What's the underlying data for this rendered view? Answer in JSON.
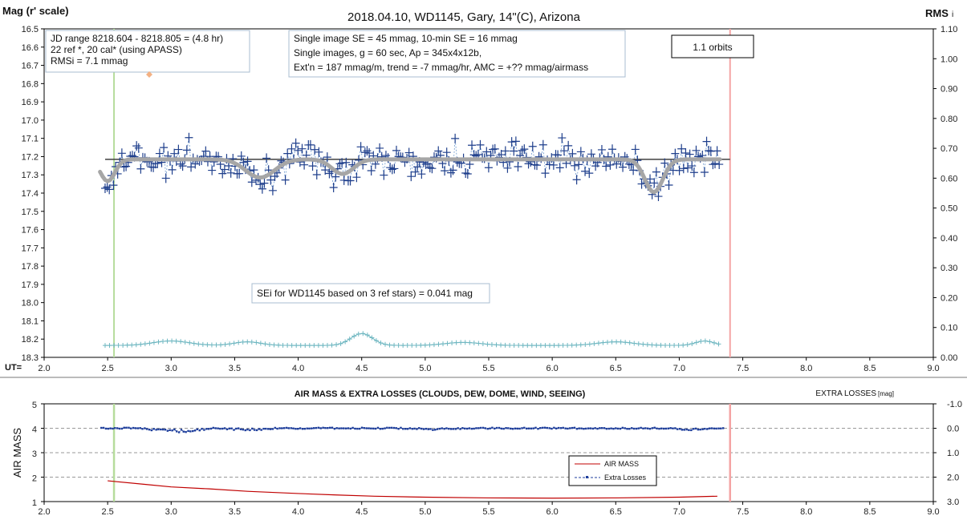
{
  "chart_data": [
    {
      "type": "scatter",
      "title": "2018.04.10,  WD1145, Gary, 14\"(C), Arizona",
      "ylabel_left": "Mag (r' scale)",
      "ylabel_right": "RMS",
      "ylabel_right_suffix": "i",
      "xlabel": "UT=",
      "xlim": [
        2.0,
        9.0
      ],
      "x_ticks": [
        "2.0",
        "2.5",
        "3.0",
        "3.5",
        "4.0",
        "4.5",
        "5.0",
        "5.5",
        "6.0",
        "6.5",
        "7.0",
        "7.5",
        "8.0",
        "8.5",
        "9.0"
      ],
      "ylim_left": [
        18.3,
        16.5
      ],
      "y_ticks_left": [
        "16.5",
        "16.6",
        "16.7",
        "16.8",
        "16.9",
        "17.0",
        "17.1",
        "17.2",
        "17.3",
        "17.4",
        "17.5",
        "17.6",
        "17.7",
        "17.8",
        "17.9",
        "18.0",
        "18.1",
        "18.2",
        "18.3"
      ],
      "ylim_right": [
        0.0,
        1.1
      ],
      "y_ticks_right": [
        "0.00",
        "0.10",
        "0.20",
        "0.30",
        "0.40",
        "0.50",
        "0.60",
        "0.70",
        "0.80",
        "0.90",
        "1.00",
        "1.10"
      ],
      "vlines": [
        {
          "x": 2.55,
          "color": "#b6dc9c"
        },
        {
          "x": 7.4,
          "color": "#f4a4a4"
        }
      ],
      "series": [
        {
          "kind": "points",
          "color": "#1f3f8c"
        },
        {
          "kind": "fit",
          "color": "#a6a6a6"
        },
        {
          "kind": "reference",
          "value": 17.215,
          "color": "#404040"
        },
        {
          "kind": "rms",
          "color": "#6fb7c1"
        }
      ],
      "x_range": [
        2.48,
        7.32
      ],
      "baseline_mag": 17.215,
      "fit_dips": [
        {
          "ut": 2.5,
          "depth": 0.12,
          "width": 0.08
        },
        {
          "ut": 3.7,
          "depth": 0.1,
          "width": 0.16
        },
        {
          "ut": 4.35,
          "depth": 0.08,
          "width": 0.12
        },
        {
          "ut": 6.8,
          "depth": 0.18,
          "width": 0.1
        }
      ],
      "rms_bumps": [
        {
          "ut": 3.0,
          "height": 0.015,
          "width": 0.2
        },
        {
          "ut": 3.6,
          "height": 0.012,
          "width": 0.15
        },
        {
          "ut": 4.5,
          "height": 0.04,
          "width": 0.12
        },
        {
          "ut": 5.3,
          "height": 0.01,
          "width": 0.2
        },
        {
          "ut": 6.5,
          "height": 0.012,
          "width": 0.2
        },
        {
          "ut": 7.2,
          "height": 0.015,
          "width": 0.1
        }
      ],
      "rms_base": 0.04,
      "annotations": {
        "jd_box": [
          "JD range  8218.604 - 8218.805  = (4.8 hr)",
          "22 ref *, 20 cal* (using APASS)",
          "RMSi = 7.1 mmag"
        ],
        "info_box": [
          "Single image SE = 45 mmag, 10-min SE = 16 mmag",
          "Single images, g = 60 sec, Ap = 345x4x12b,",
          "Ext'n = 187  mmag/m, trend = -7  mmag/hr, AMC = +?? mmag/airmass"
        ],
        "orbits": "1.1 orbits",
        "sei": "SEi for WD1145 based on 3 ref stars) = 0.041 mag"
      }
    },
    {
      "type": "line",
      "title": "AIR MASS & EXTRA LOSSES (CLOUDS, DEW, DOME, WIND, SEEING)",
      "ylabel_left": "AIR MASS",
      "ylabel_right": "EXTRA LOSSES",
      "ylabel_right_unit": "[mag]",
      "xlim": [
        2.0,
        9.0
      ],
      "x_ticks": [
        "2.0",
        "2.5",
        "3.0",
        "3.5",
        "4.0",
        "4.5",
        "5.0",
        "5.5",
        "6.0",
        "6.5",
        "7.0",
        "7.5",
        "8.0",
        "8.5",
        "9.0"
      ],
      "ylim_left": [
        1,
        5
      ],
      "y_ticks_left": [
        "1",
        "2",
        "3",
        "4",
        "5"
      ],
      "ylim_right": [
        3.0,
        -1.0
      ],
      "y_ticks_right": [
        "-1.0",
        "0.0",
        "1.0",
        "2.0",
        "3.0"
      ],
      "vlines": [
        {
          "x": 2.55,
          "color": "#b6dc9c"
        },
        {
          "x": 7.4,
          "color": "#f4a4a4"
        }
      ],
      "series": [
        {
          "name": "AIR MASS",
          "color": "#c00000",
          "x": [
            2.5,
            2.8,
            3.0,
            3.3,
            3.6,
            4.0,
            4.3,
            4.6,
            5.0,
            5.5,
            6.0,
            6.5,
            7.0,
            7.3
          ],
          "y": [
            1.85,
            1.7,
            1.6,
            1.52,
            1.42,
            1.33,
            1.27,
            1.22,
            1.18,
            1.15,
            1.14,
            1.15,
            1.18,
            1.22
          ]
        },
        {
          "name": "Extra Losses",
          "color": "#1f3f9c",
          "x_range": [
            2.45,
            7.35
          ],
          "base": 0.0,
          "dips": [
            {
              "ut": 3.1,
              "depth": 0.12,
              "width": 0.15
            },
            {
              "ut": 2.9,
              "depth": 0.05,
              "width": 0.1
            },
            {
              "ut": 3.6,
              "depth": 0.06,
              "width": 0.15
            },
            {
              "ut": 5.1,
              "depth": 0.04,
              "width": 0.2
            },
            {
              "ut": 7.1,
              "depth": 0.06,
              "width": 0.12
            }
          ]
        }
      ],
      "legend_position": "lower-center"
    }
  ]
}
